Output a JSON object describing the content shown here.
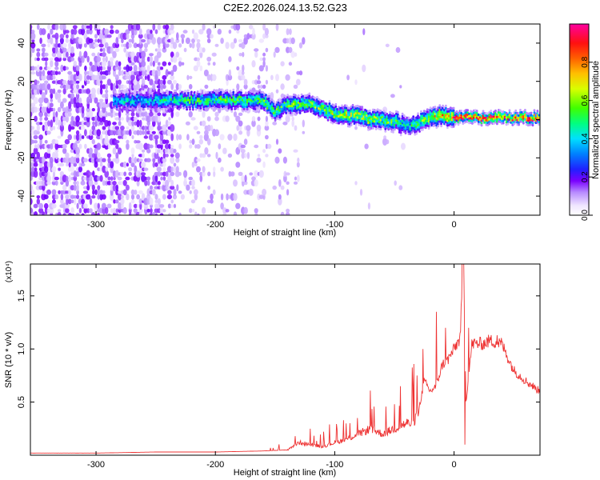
{
  "title": "C2E2.2026.024.13.52.G23",
  "chart_data": [
    {
      "type": "heatmap",
      "title": "C2E2.2026.024.13.52.G23",
      "xlabel": "Height of straight line (km)",
      "ylabel": "Frequency (Hz)",
      "xlim": [
        -355,
        72
      ],
      "ylim": [
        -50,
        50
      ],
      "x_ticks": [
        -300,
        -200,
        -100,
        0
      ],
      "y_ticks": [
        -40,
        -20,
        0,
        20,
        40
      ],
      "colorbar": {
        "label": "Normalized spectral amplitude",
        "range": [
          0,
          1
        ],
        "ticks": [
          "0.0",
          "0.2",
          "0.4",
          "0.6",
          "0.8"
        ],
        "colormap": [
          "#ffffff",
          "#e6d6fa",
          "#8a2be2",
          "#3b00ff",
          "#0060ff",
          "#00c8ff",
          "#00ff90",
          "#40ff00",
          "#c8ff00",
          "#ffd700",
          "#ff8000",
          "#ff1000",
          "#ff00a0"
        ]
      },
      "ridge": {
        "x": [
          -280,
          -260,
          -240,
          -220,
          -200,
          -180,
          -160,
          -150,
          -140,
          -120,
          -100,
          -80,
          -70,
          -60,
          -50,
          -40,
          -30,
          -20,
          -10,
          0,
          10,
          20,
          40,
          72
        ],
        "freq": [
          10,
          10,
          10,
          10,
          10,
          10,
          10,
          4,
          8,
          8,
          3,
          2,
          0,
          0,
          -1,
          -3,
          -2,
          1,
          2,
          1,
          1,
          1,
          1,
          1
        ],
        "peak_amplitude": [
          0.45,
          0.4,
          0.5,
          0.55,
          0.55,
          0.55,
          0.6,
          0.6,
          0.6,
          0.6,
          0.65,
          0.7,
          0.7,
          0.6,
          0.6,
          0.5,
          0.6,
          0.7,
          0.8,
          0.9,
          0.95,
          0.95,
          0.95,
          0.95
        ]
      }
    },
    {
      "type": "line",
      "xlabel": "Height of straight line (km)",
      "ylabel": "SNR (10 * v/v)",
      "y_multiplier": "(x10⁴)",
      "xlim": [
        -355,
        72
      ],
      "ylim": [
        0,
        1.8
      ],
      "x_ticks": [
        -300,
        -200,
        -100,
        0
      ],
      "y_ticks": [
        0.5,
        1.0,
        1.5
      ],
      "y_tick_labels": [
        "0.5",
        "1.0",
        "1.5"
      ],
      "color": "#ee3333",
      "series": [
        {
          "x": [
            -355,
            -300,
            -250,
            -200,
            -160,
            -140,
            -130,
            -120,
            -110,
            -100,
            -90,
            -80,
            -70,
            -60,
            -50,
            -40,
            -35,
            -30,
            -25,
            -20,
            -15,
            -10,
            -5,
            0,
            5,
            8,
            10,
            15,
            20,
            25,
            30,
            40,
            45,
            50,
            60,
            72
          ],
          "values": [
            0.02,
            0.02,
            0.03,
            0.03,
            0.04,
            0.05,
            0.12,
            0.1,
            0.08,
            0.12,
            0.15,
            0.2,
            0.25,
            0.2,
            0.25,
            0.3,
            0.3,
            0.4,
            0.7,
            0.6,
            0.65,
            0.85,
            0.9,
            1.0,
            1.1,
            1.85,
            0.5,
            1.05,
            1.05,
            1.05,
            1.08,
            1.05,
            0.92,
            0.8,
            0.7,
            0.6
          ],
          "spikes": [
            {
              "x": -133,
              "value": 0.18
            },
            {
              "x": -50,
              "value": 0.48
            },
            {
              "x": -45,
              "value": 0.65
            },
            {
              "x": -31,
              "value": 0.75
            },
            {
              "x": -26,
              "value": 1.0
            },
            {
              "x": -15,
              "value": 1.35
            },
            {
              "x": -7,
              "value": 1.2
            },
            {
              "x": 7,
              "value": 1.85
            },
            {
              "x": 9,
              "value": 0.1
            },
            {
              "x": 12,
              "value": 1.2
            },
            {
              "x": 36,
              "value": 1.13
            }
          ]
        }
      ]
    }
  ]
}
